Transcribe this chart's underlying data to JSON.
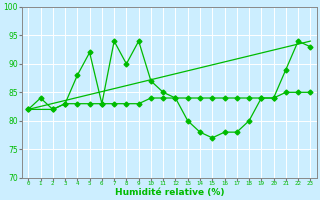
{
  "title": "",
  "xlabel": "Humidité relative (%)",
  "ylabel": "",
  "bg_color": "#cceeff",
  "grid_color": "#ffffff",
  "line_color": "#00bb00",
  "xlim": [
    -0.5,
    23.5
  ],
  "ylim": [
    70,
    100
  ],
  "yticks": [
    70,
    75,
    80,
    85,
    90,
    95,
    100
  ],
  "xticks": [
    0,
    1,
    2,
    3,
    4,
    5,
    6,
    7,
    8,
    9,
    10,
    11,
    12,
    13,
    14,
    15,
    16,
    17,
    18,
    19,
    20,
    21,
    22,
    23
  ],
  "line1_x": [
    0,
    1,
    2,
    3,
    4,
    5,
    6,
    7,
    8,
    9,
    10,
    11,
    12,
    13,
    14,
    15,
    16,
    17,
    18,
    19,
    20,
    21,
    22,
    23
  ],
  "line1_y": [
    82,
    84,
    82,
    83,
    88,
    92,
    83,
    94,
    90,
    94,
    87,
    85,
    84,
    80,
    78,
    77,
    78,
    78,
    80,
    84,
    84,
    89,
    94,
    93
  ],
  "line2_x": [
    0,
    2,
    3,
    4,
    5,
    6,
    7,
    8,
    9,
    10,
    11,
    12,
    13,
    14,
    15,
    16,
    17,
    18,
    19,
    20,
    21,
    22,
    23
  ],
  "line2_y": [
    82,
    82,
    83,
    83,
    83,
    83,
    83,
    83,
    83,
    84,
    84,
    84,
    84,
    84,
    84,
    84,
    84,
    84,
    84,
    84,
    85,
    85,
    85
  ],
  "line3_x": [
    0,
    23
  ],
  "line3_y": [
    82,
    94
  ]
}
